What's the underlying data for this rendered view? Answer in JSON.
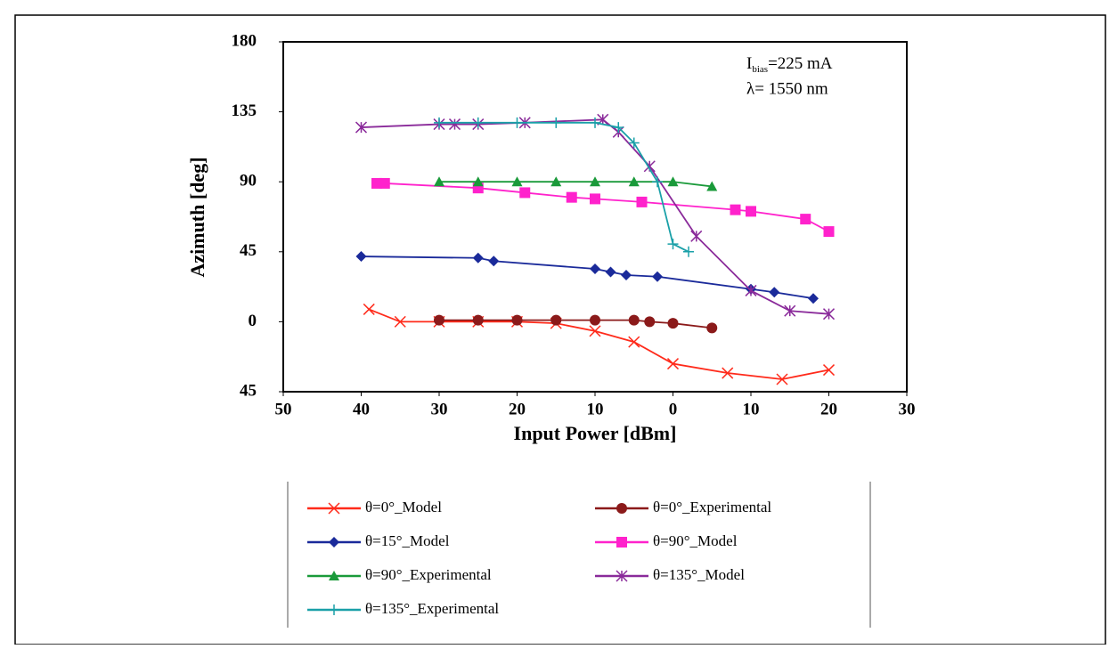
{
  "chart_data": {
    "type": "line",
    "xlabel": "Input Power [dBm]",
    "ylabel": "Azimuth [deg]",
    "annotations": [
      {
        "main": "I",
        "sub": "bias",
        "rest": "=225 mA"
      },
      {
        "main": "λ= 1550 nm"
      }
    ],
    "xlim": [
      -50,
      30
    ],
    "xticks": [
      {
        "value": -50,
        "label": "50"
      },
      {
        "value": -40,
        "label": "40"
      },
      {
        "value": -30,
        "label": "30"
      },
      {
        "value": -20,
        "label": "20"
      },
      {
        "value": -10,
        "label": "10"
      },
      0,
      10,
      20,
      30
    ],
    "ylim": [
      -45,
      180
    ],
    "yticks": [
      {
        "value": -45,
        "label": "45"
      },
      0,
      45,
      90,
      135,
      180
    ],
    "grid": false,
    "series": [
      {
        "name": "θ=0°_Model",
        "color": "#ff2a1a",
        "marker": "x",
        "x": [
          -39,
          -35,
          -30,
          -25,
          -20,
          -15,
          -10,
          -5,
          0,
          7,
          14,
          20
        ],
        "values": [
          8,
          0,
          0,
          0,
          0,
          -1,
          -6,
          -13,
          -27,
          -33,
          -37,
          -31
        ]
      },
      {
        "name": "θ=0°_Experimental",
        "color": "#8b1a1a",
        "marker": "circle",
        "x": [
          -30,
          -25,
          -20,
          -15,
          -10,
          -5,
          -3,
          0,
          5
        ],
        "values": [
          1,
          1,
          1,
          1,
          1,
          1,
          0,
          -1,
          -4
        ]
      },
      {
        "name": "θ=15°_Model",
        "color": "#1a2a9a",
        "marker": "diamond",
        "x": [
          -40,
          -25,
          -23,
          -10,
          -8,
          -6,
          -2,
          10,
          13,
          18
        ],
        "values": [
          42,
          41,
          39,
          34,
          32,
          30,
          29,
          21,
          19,
          15
        ]
      },
      {
        "name": "θ=90°_Model",
        "color": "#ff22cc",
        "marker": "square",
        "x": [
          -38,
          -37,
          -25,
          -19,
          -13,
          -10,
          -4,
          8,
          10,
          17,
          20
        ],
        "values": [
          89,
          89,
          86,
          83,
          80,
          79,
          77,
          72,
          71,
          66,
          58
        ]
      },
      {
        "name": "θ=90°_Experimental",
        "color": "#1a9a3a",
        "marker": "triangle",
        "x": [
          -30,
          -25,
          -20,
          -15,
          -10,
          -5,
          0,
          5
        ],
        "values": [
          90,
          90,
          90,
          90,
          90,
          90,
          90,
          87
        ]
      },
      {
        "name": "θ=135°_Model",
        "color": "#8a2a9a",
        "marker": "star",
        "x": [
          -40,
          -30,
          -28,
          -25,
          -19,
          -9,
          -7,
          -3,
          3,
          10,
          15,
          20
        ],
        "values": [
          125,
          127,
          127,
          127,
          128,
          130,
          122,
          100,
          55,
          20,
          7,
          5
        ]
      },
      {
        "name": "θ=135°_Experimental",
        "color": "#1aa0a8",
        "marker": "plus",
        "x": [
          -30,
          -25,
          -20,
          -15,
          -10,
          -7,
          -5,
          -2,
          0,
          2
        ],
        "values": [
          128,
          128,
          128,
          128,
          128,
          125,
          115,
          90,
          50,
          45
        ]
      }
    ]
  }
}
